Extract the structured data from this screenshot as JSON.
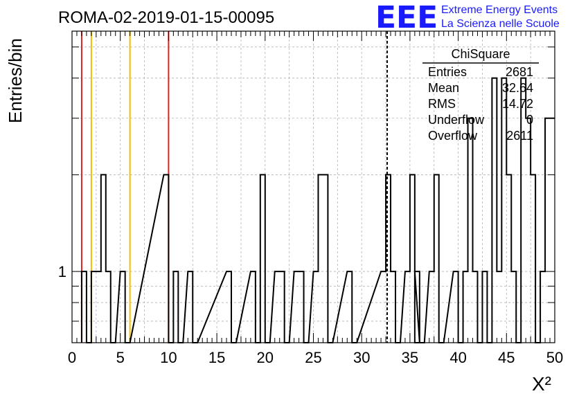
{
  "title": "ROMA-02-2019-01-15-00095",
  "logo": {
    "letters": "EEE",
    "line1": "Extreme Energy Events",
    "line2": "La Scienza nelle Scuole",
    "color": "#1a1aff"
  },
  "stats_box": {
    "title": "ChiSquare",
    "rows": [
      {
        "label": "Entries",
        "value": "2681"
      },
      {
        "label": "Mean",
        "value": "32.64"
      },
      {
        "label": "RMS",
        "value": "14.72"
      },
      {
        "label": "Underflow",
        "value": "0"
      },
      {
        "label": "Overflow",
        "value": "2611"
      }
    ]
  },
  "chart_data": {
    "type": "histogram",
    "title": "ROMA-02-2019-01-15-00095",
    "xlabel": "X²",
    "ylabel": "Entries/bin",
    "xlim": [
      0,
      50
    ],
    "y_scale": "log",
    "ylim": [
      0.6,
      5.6
    ],
    "grid": true,
    "bin_width": 0.5,
    "x_ticks": [
      "0",
      "5",
      "10",
      "15",
      "20",
      "25",
      "30",
      "35",
      "40",
      "45",
      "50"
    ],
    "y_ticks": [
      "1"
    ],
    "bins": [
      {
        "x": 1.0,
        "y": 1
      },
      {
        "x": 1.5,
        "y": 0
      },
      {
        "x": 2.0,
        "y": 1
      },
      {
        "x": 2.5,
        "y": 1
      },
      {
        "x": 3.0,
        "y": 2
      },
      {
        "x": 3.5,
        "y": 1
      },
      {
        "x": 4.0,
        "y": 0
      },
      {
        "x": 5.0,
        "y": 1
      },
      {
        "x": 5.5,
        "y": 0
      },
      {
        "x": 9.5,
        "y": 2
      },
      {
        "x": 10.0,
        "y": 0
      },
      {
        "x": 10.5,
        "y": 1
      },
      {
        "x": 11.0,
        "y": 0
      },
      {
        "x": 12.0,
        "y": 1
      },
      {
        "x": 12.5,
        "y": 0
      },
      {
        "x": 16.0,
        "y": 1
      },
      {
        "x": 16.5,
        "y": 0
      },
      {
        "x": 18.5,
        "y": 1
      },
      {
        "x": 19.0,
        "y": 0
      },
      {
        "x": 19.5,
        "y": 2
      },
      {
        "x": 20.0,
        "y": 0
      },
      {
        "x": 21.0,
        "y": 1
      },
      {
        "x": 21.5,
        "y": 1
      },
      {
        "x": 22.0,
        "y": 0
      },
      {
        "x": 23.0,
        "y": 1
      },
      {
        "x": 23.5,
        "y": 1
      },
      {
        "x": 24.0,
        "y": 0
      },
      {
        "x": 25.0,
        "y": 1
      },
      {
        "x": 25.5,
        "y": 2
      },
      {
        "x": 26.0,
        "y": 2
      },
      {
        "x": 26.5,
        "y": 0
      },
      {
        "x": 28.5,
        "y": 1
      },
      {
        "x": 29.0,
        "y": 0
      },
      {
        "x": 32.0,
        "y": 1
      },
      {
        "x": 32.5,
        "y": 2
      },
      {
        "x": 33.0,
        "y": 1
      },
      {
        "x": 33.5,
        "y": 0
      },
      {
        "x": 34.5,
        "y": 1
      },
      {
        "x": 35.0,
        "y": 2
      },
      {
        "x": 35.5,
        "y": 0
      },
      {
        "x": 35.5,
        "y": 1
      },
      {
        "x": 36.0,
        "y": 0
      },
      {
        "x": 37.0,
        "y": 1
      },
      {
        "x": 37.5,
        "y": 2
      },
      {
        "x": 38.0,
        "y": 0
      },
      {
        "x": 39.5,
        "y": 1
      },
      {
        "x": 40.0,
        "y": 0
      },
      {
        "x": 40.5,
        "y": 1
      },
      {
        "x": 41.0,
        "y": 3
      },
      {
        "x": 41.5,
        "y": 1
      },
      {
        "x": 42.0,
        "y": 0
      },
      {
        "x": 42.5,
        "y": 1
      },
      {
        "x": 43.0,
        "y": 0
      },
      {
        "x": 43.5,
        "y": 4
      },
      {
        "x": 44.0,
        "y": 1
      },
      {
        "x": 44.5,
        "y": 4
      },
      {
        "x": 45.0,
        "y": 2
      },
      {
        "x": 45.5,
        "y": 1
      },
      {
        "x": 46.0,
        "y": 0
      },
      {
        "x": 46.5,
        "y": 4
      },
      {
        "x": 47.0,
        "y": 3
      },
      {
        "x": 47.5,
        "y": 2
      },
      {
        "x": 48.0,
        "y": 0
      },
      {
        "x": 48.5,
        "y": 1
      },
      {
        "x": 49.0,
        "y": 3
      },
      {
        "x": 49.5,
        "y": 3
      }
    ],
    "vertical_lines": [
      {
        "x": 1.0,
        "color": "#e02020",
        "style": "solid"
      },
      {
        "x": 2.0,
        "color": "#f0c000",
        "style": "solid"
      },
      {
        "x": 6.0,
        "color": "#f0c000",
        "style": "solid"
      },
      {
        "x": 10.0,
        "color": "#e02020",
        "style": "solid"
      },
      {
        "x": 32.64,
        "color": "#000000",
        "style": "dashed"
      }
    ]
  }
}
